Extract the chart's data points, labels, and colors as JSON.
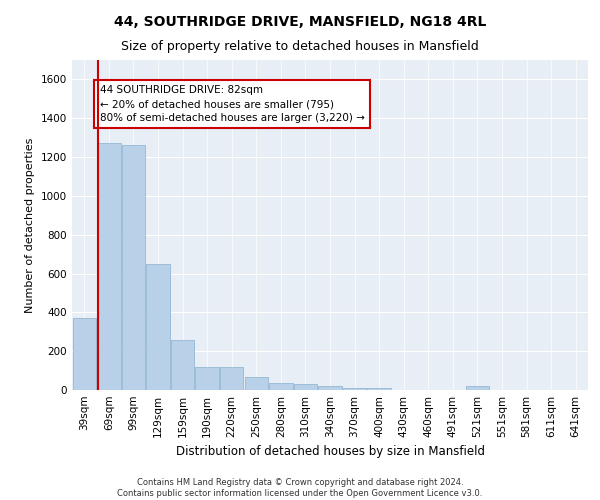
{
  "title": "44, SOUTHRIDGE DRIVE, MANSFIELD, NG18 4RL",
  "subtitle": "Size of property relative to detached houses in Mansfield",
  "xlabel": "Distribution of detached houses by size in Mansfield",
  "ylabel": "Number of detached properties",
  "categories": [
    "39sqm",
    "69sqm",
    "99sqm",
    "129sqm",
    "159sqm",
    "190sqm",
    "220sqm",
    "250sqm",
    "280sqm",
    "310sqm",
    "340sqm",
    "370sqm",
    "400sqm",
    "430sqm",
    "460sqm",
    "491sqm",
    "521sqm",
    "551sqm",
    "581sqm",
    "611sqm",
    "641sqm"
  ],
  "values": [
    370,
    1270,
    1260,
    650,
    260,
    120,
    120,
    65,
    35,
    30,
    20,
    12,
    10,
    0,
    0,
    0,
    20,
    0,
    0,
    0,
    0
  ],
  "bar_color": "#b8d0e8",
  "bar_edge_color": "#8ab0cc",
  "vline_color": "#cc0000",
  "annotation_text": "44 SOUTHRIDGE DRIVE: 82sqm\n← 20% of detached houses are smaller (795)\n80% of semi-detached houses are larger (3,220) →",
  "annotation_box_color": "#ffffff",
  "annotation_box_edge": "#cc0000",
  "ylim": [
    0,
    1700
  ],
  "yticks": [
    0,
    200,
    400,
    600,
    800,
    1000,
    1200,
    1400,
    1600
  ],
  "plot_bg_color": "#e8eef5",
  "grid_color": "#ffffff",
  "footer_text": "Contains HM Land Registry data © Crown copyright and database right 2024.\nContains public sector information licensed under the Open Government Licence v3.0.",
  "title_fontsize": 10,
  "subtitle_fontsize": 9,
  "ylabel_fontsize": 8,
  "xlabel_fontsize": 8.5,
  "tick_fontsize": 7.5,
  "annotation_fontsize": 7.5,
  "footer_fontsize": 6
}
